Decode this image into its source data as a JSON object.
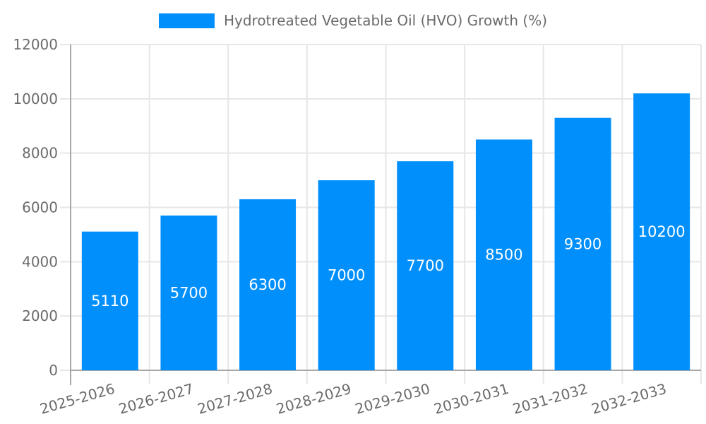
{
  "legend": {
    "label": "Hydrotreated Vegetable Oil (HVO) Growth (%)"
  },
  "chart_data": {
    "type": "bar",
    "title": "Hydrotreated Vegetable Oil (HVO) Growth (%)",
    "categories": [
      "2025-2026",
      "2026-2027",
      "2027-2028",
      "2028-2029",
      "2029-2030",
      "2030-2031",
      "2031-2032",
      "2032-2033"
    ],
    "values": [
      5110,
      5700,
      6300,
      7000,
      7700,
      8500,
      9300,
      10200
    ],
    "data_labels": [
      "5110",
      "5700",
      "6300",
      "7000",
      "7700",
      "8500",
      "9300",
      "10200"
    ],
    "xlabel": "",
    "ylabel": "",
    "ylim": [
      0,
      12000
    ],
    "yticks": [
      0,
      2000,
      4000,
      6000,
      8000,
      10000,
      12000
    ],
    "ytick_labels": [
      "0",
      "2000",
      "4000",
      "6000",
      "8000",
      "10000",
      "12000"
    ],
    "legend_position": "top",
    "grid": true,
    "colors": {
      "bar": "#008FFB",
      "grid_line": "#e6e6e6",
      "axis_line": "#a8a8a8",
      "axis_label": "#6b6b6b",
      "data_label": "#ffffff",
      "background": "#ffffff"
    }
  }
}
